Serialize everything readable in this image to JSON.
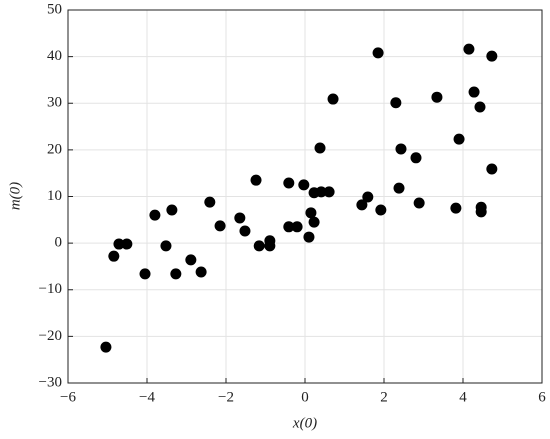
{
  "chart_data": {
    "type": "scatter",
    "x_label": "x(0)",
    "y_label": "m(0)",
    "color": "#000000",
    "grid": true,
    "x": [
      -5.04,
      -4.84,
      -4.71,
      -4.51,
      -4.05,
      -3.8,
      -3.52,
      -3.37,
      -3.27,
      -2.89,
      -2.63,
      -2.41,
      -2.15,
      -1.65,
      -1.52,
      -1.24,
      -1.16,
      -0.89,
      -0.89,
      -0.41,
      -0.41,
      -0.2,
      -0.03,
      0.1,
      0.15,
      0.23,
      0.23,
      0.38,
      0.41,
      0.61,
      0.71,
      1.44,
      1.59,
      1.85,
      1.92,
      2.3,
      2.38,
      2.43,
      2.81,
      2.89,
      3.34,
      3.82,
      3.9,
      4.15,
      4.28,
      4.43,
      4.46,
      4.46,
      4.73,
      4.73
    ],
    "values": [
      -22.3,
      -2.8,
      -0.2,
      -0.2,
      -6.6,
      6,
      -0.6,
      7.1,
      -6.6,
      -3.6,
      -6.2,
      8.8,
      3.7,
      5.4,
      2.6,
      13.5,
      -0.6,
      0.5,
      -0.6,
      12.9,
      3.5,
      3.5,
      12.5,
      1.3,
      6.5,
      4.5,
      10.8,
      20.4,
      11,
      11,
      30.9,
      8.2,
      9.9,
      40.8,
      7.1,
      30.1,
      11.8,
      20.2,
      18.3,
      8.6,
      31.3,
      7.5,
      22.3,
      41.6,
      32.4,
      29.2,
      7.7,
      6.7,
      15.9,
      40.1
    ],
    "xlim": [
      -6,
      6
    ],
    "ylim": [
      -30,
      50
    ],
    "xticks": [
      {
        "value": -6,
        "label": "−6"
      },
      {
        "value": -4,
        "label": "−4"
      },
      {
        "value": -2,
        "label": "−2"
      },
      0,
      2,
      4,
      6
    ],
    "yticks": [
      {
        "value": -30,
        "label": "−30"
      },
      {
        "value": -20,
        "label": "−20"
      },
      {
        "value": -10,
        "label": "−10"
      },
      0,
      10,
      20,
      30,
      40,
      50
    ]
  }
}
